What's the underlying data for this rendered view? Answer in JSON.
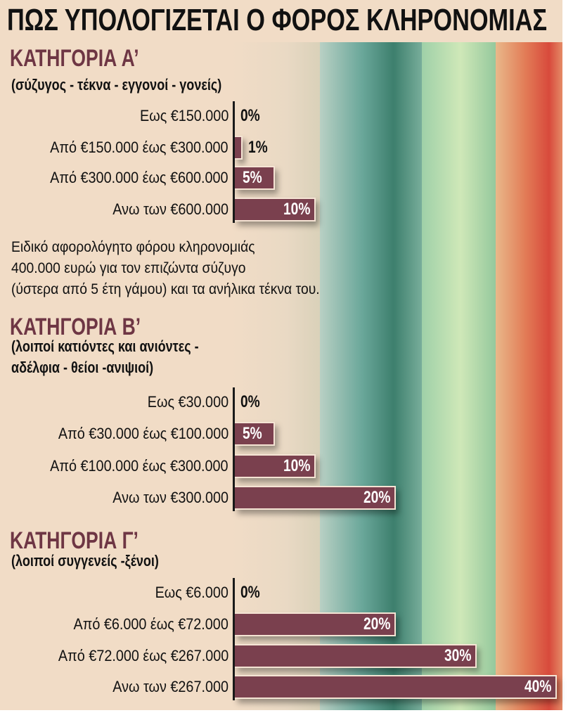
{
  "title": "ΠΩΣ ΥΠΟΛΟΓΙΖΕΤΑΙ Ο ΦΟΡΟΣ ΚΛΗΡΟΝΟΜΙΑΣ",
  "colors": {
    "bar": "#7a404e",
    "category_title": "#6e3644",
    "background": "#f1dcc6"
  },
  "note": [
    "Ειδικό αφορολόγητο φόρου κληρονομιάς",
    "400.000 ευρώ για τον επιζώντα σύζυγο",
    "(ύστερα από 5 έτη γάμου) και τα ανήλικα τέκνα του."
  ],
  "chart_data": [
    {
      "type": "bar",
      "orientation": "horizontal",
      "title": "ΚΑΤΗΓΟΡΙΑ Α’",
      "subtitle": [
        "(σύζυγος - τέκνα - εγγονοί - γονείς)"
      ],
      "categories": [
        "Εως €150.000",
        "Από €150.000 έως €300.000",
        "Από €300.000 έως €600.000",
        "Ανω των €600.000"
      ],
      "values": [
        0,
        1,
        5,
        10
      ],
      "labels": [
        "0%",
        "1%",
        "5%",
        "10%"
      ]
    },
    {
      "type": "bar",
      "orientation": "horizontal",
      "title": "ΚΑΤΗΓΟΡΙΑ Β’",
      "subtitle": [
        "(λοιποί κατιόντες και ανιόντες -",
        "αδέλφια - θείοι -ανιψιοί)"
      ],
      "categories": [
        "Εως €30.000",
        "Από €30.000 έως €100.000",
        "Από €100.000 έως €300.000",
        "Ανω των €300.000"
      ],
      "values": [
        0,
        5,
        10,
        20
      ],
      "labels": [
        "0%",
        "5%",
        "10%",
        "20%"
      ]
    },
    {
      "type": "bar",
      "orientation": "horizontal",
      "title": "ΚΑΤΗΓΟΡΙΑ Γ’",
      "subtitle": [
        "(λοιποί συγγενείς -ξένοι)"
      ],
      "categories": [
        "Εως €6.000",
        "Από €6.000 έως €72.000",
        "Από €72.000 έως €267.000",
        "Ανω των €267.000"
      ],
      "values": [
        0,
        20,
        30,
        40
      ],
      "labels": [
        "0%",
        "20%",
        "30%",
        "40%"
      ]
    }
  ]
}
